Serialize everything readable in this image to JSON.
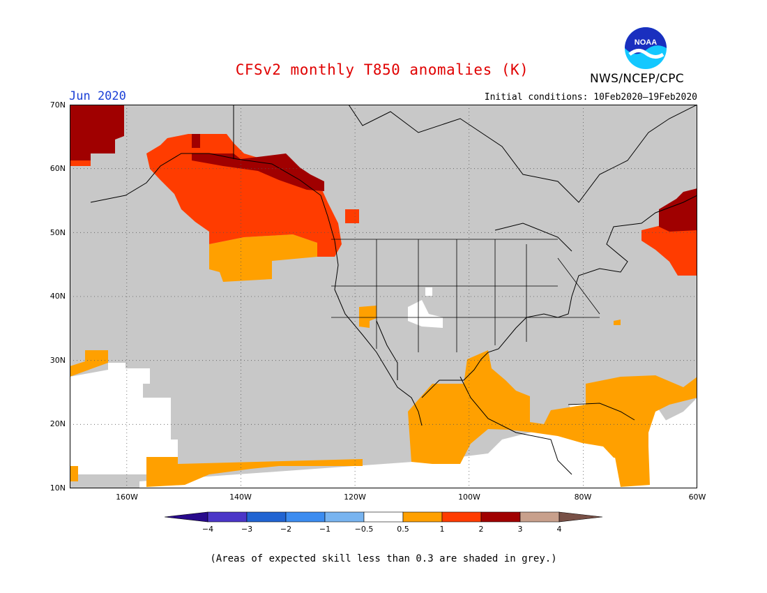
{
  "header": {
    "title": "CFSv2 monthly T850 anomalies (K)",
    "agency": "NWS/NCEP/CPC",
    "month": "Jun 2020",
    "initial_conditions": "Initial conditions: 10Feb2020–19Feb2020",
    "logo_text": "NOAA"
  },
  "map": {
    "lat_labels": [
      "70N",
      "60N",
      "50N",
      "40N",
      "30N",
      "20N",
      "10N"
    ],
    "lon_labels": [
      "160W",
      "140W",
      "120W",
      "100W",
      "80W",
      "60W"
    ],
    "low_skill_color": "#c8c8c8",
    "ocean_fill_color": "#ffffff"
  },
  "colorbar": {
    "labels": [
      "−4",
      "−3",
      "−2",
      "−1",
      "−0.5",
      "0.5",
      "1",
      "2",
      "3",
      "4"
    ],
    "colors": [
      "#280a8c",
      "#4b36c8",
      "#2164d2",
      "#3c8cf0",
      "#78b4f0",
      "#ffffff",
      "#ffa000",
      "#ff3c00",
      "#a00000",
      "#c8a08c",
      "#785046"
    ]
  },
  "footnote": "(Areas of expected skill less than 0.3 are shaded in grey.)"
}
